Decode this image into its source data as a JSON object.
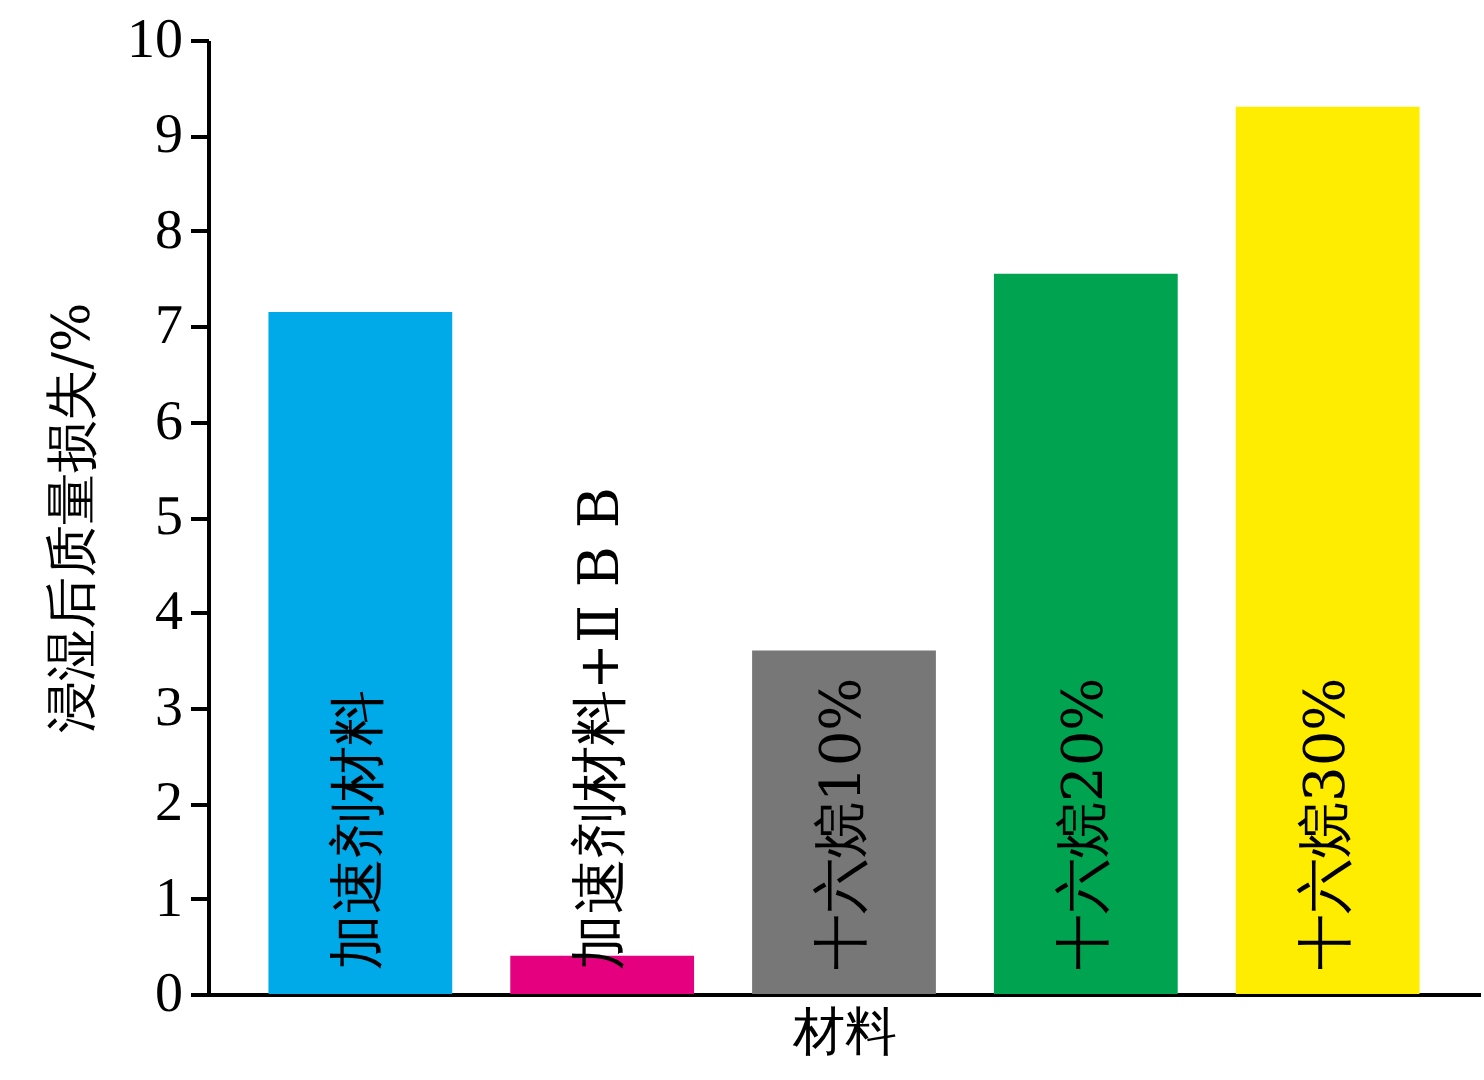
{
  "chart_data": {
    "type": "bar",
    "xlabel": "材料",
    "ylabel": "浸湿后质量损失/%",
    "categories": [
      "加速剂材料",
      "加速剂材料+Ⅱ B B",
      "十六烷10%",
      "十六烷20%",
      "十六烷30%"
    ],
    "values": [
      7.15,
      0.4,
      3.6,
      7.55,
      9.3
    ],
    "colors": [
      "#00a9e8",
      "#e5007f",
      "#787777",
      "#00a34f",
      "#ffed00"
    ],
    "ylim": [
      0,
      10
    ],
    "yticks": [
      0,
      1,
      2,
      3,
      4,
      5,
      6,
      7,
      8,
      9,
      10
    ]
  }
}
